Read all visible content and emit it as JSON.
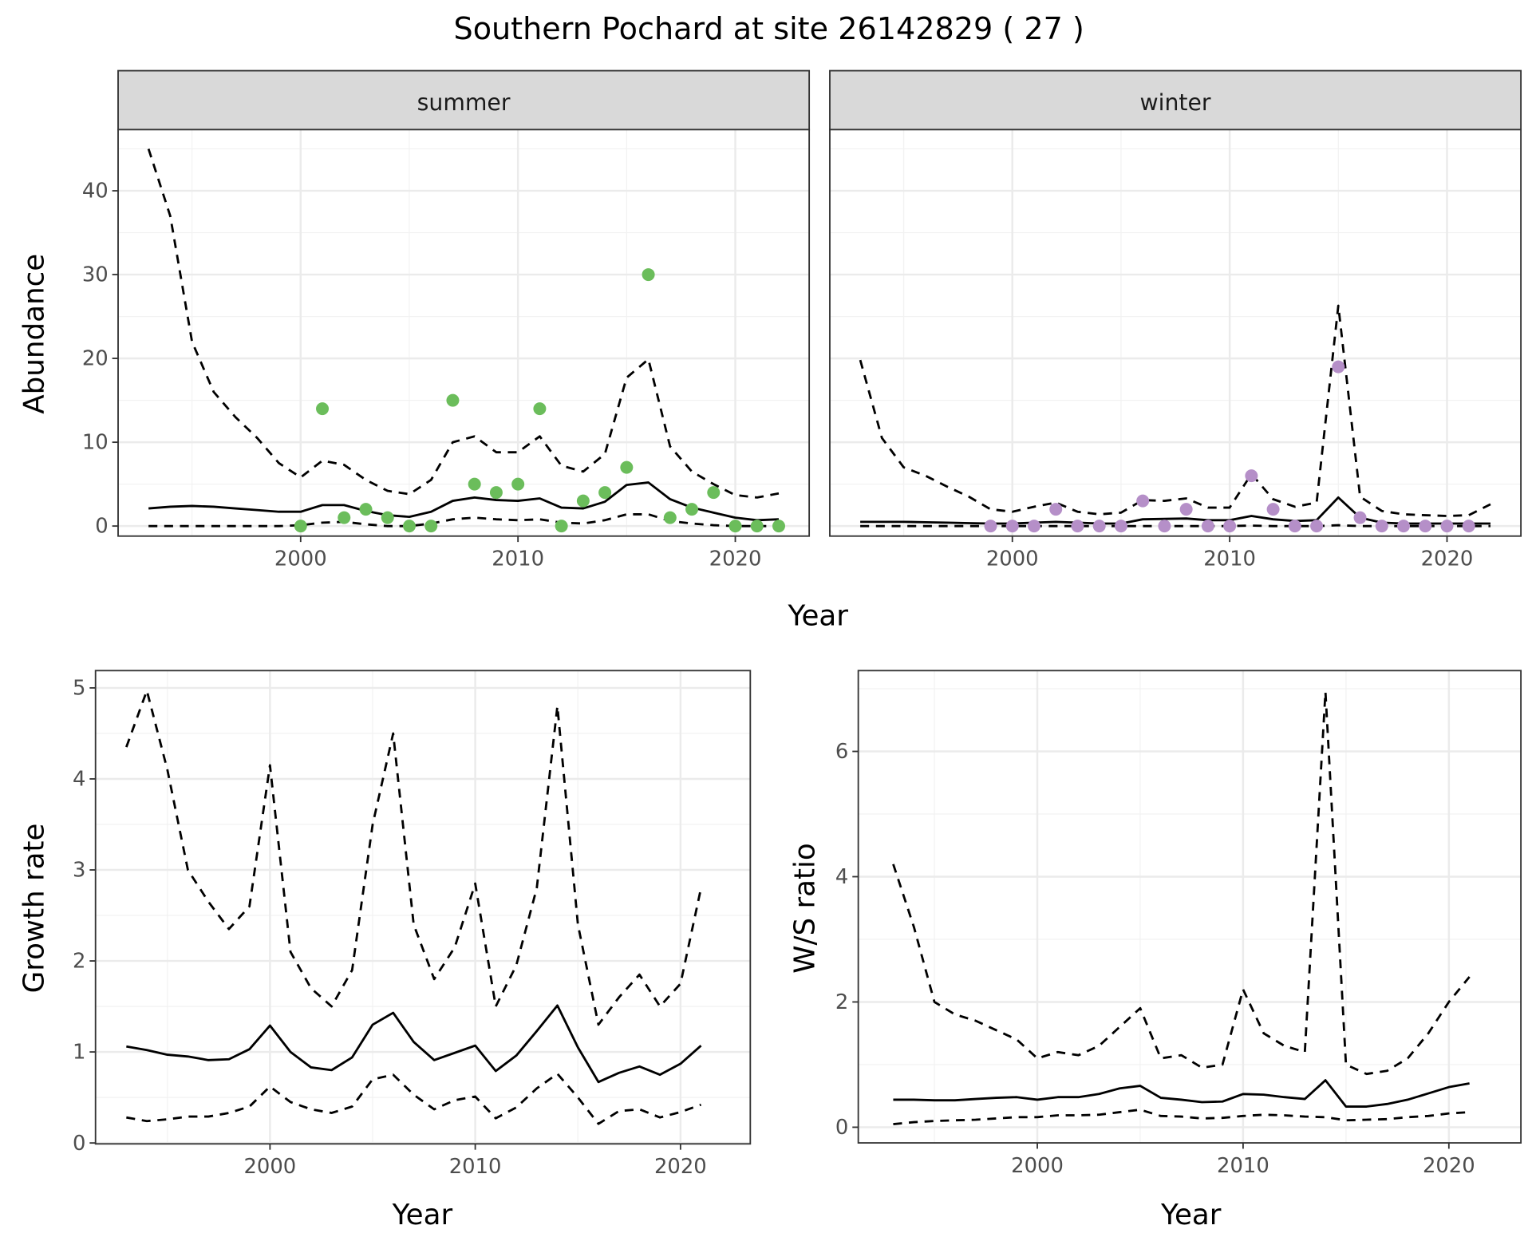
{
  "title": "Southern Pochard at site 26142829 ( 27 )",
  "colors": {
    "summer": "#6bbd5b",
    "winter": "#b58fc8",
    "line": "#000000",
    "strip": "#d9d9d9",
    "grid": "#ebebeb"
  },
  "chart_data": [
    {
      "type": "line",
      "facet": "summer",
      "xlabel": "Year",
      "ylabel": "Abundance",
      "xlim": [
        1991.6,
        2023.4
      ],
      "ylim": [
        -1.2,
        47.3
      ],
      "xticks": [
        2000,
        2010,
        2020
      ],
      "yticks": [
        0,
        10,
        20,
        30,
        40
      ],
      "x": [
        1993,
        1994,
        1995,
        1996,
        1997,
        1998,
        1999,
        2000,
        2001,
        2002,
        2003,
        2004,
        2005,
        2006,
        2007,
        2008,
        2009,
        2010,
        2011,
        2012,
        2013,
        2014,
        2015,
        2016,
        2017,
        2018,
        2019,
        2020,
        2021,
        2022
      ],
      "series": [
        {
          "name": "upper",
          "style": "dashed",
          "values": [
            45,
            37,
            22,
            16,
            13,
            10.5,
            7.5,
            5.8,
            7.8,
            7.3,
            5.5,
            4.2,
            3.8,
            5.5,
            10,
            10.7,
            8.8,
            8.8,
            10.7,
            7.2,
            6.5,
            8.6,
            17.7,
            19.9,
            9.5,
            6.5,
            5,
            3.7,
            3.4,
            3.9
          ]
        },
        {
          "name": "mean",
          "style": "solid",
          "values": [
            2.1,
            2.3,
            2.4,
            2.3,
            2.1,
            1.9,
            1.7,
            1.7,
            2.5,
            2.5,
            1.8,
            1.3,
            1.1,
            1.7,
            3.0,
            3.4,
            3.1,
            3.0,
            3.3,
            2.2,
            2.1,
            2.9,
            4.9,
            5.2,
            3.2,
            2.2,
            1.6,
            1.0,
            0.7,
            0.8
          ]
        },
        {
          "name": "lower",
          "style": "dashed",
          "values": [
            0,
            0,
            0,
            0,
            0,
            0,
            0,
            0.1,
            0.4,
            0.5,
            0.2,
            0,
            0,
            0.3,
            0.8,
            1.0,
            0.8,
            0.7,
            0.8,
            0.4,
            0.3,
            0.7,
            1.4,
            1.4,
            0.6,
            0.3,
            0.1,
            0,
            0,
            0
          ]
        }
      ],
      "points": {
        "x": [
          2000,
          2001,
          2002,
          2003,
          2004,
          2005,
          2006,
          2007,
          2008,
          2009,
          2010,
          2011,
          2012,
          2013,
          2014,
          2015,
          2016,
          2017,
          2018,
          2019,
          2020,
          2021,
          2022
        ],
        "y": [
          0,
          14,
          1,
          2,
          1,
          0,
          0,
          15,
          5,
          4,
          5,
          14,
          0,
          3,
          4,
          7,
          30,
          1,
          2,
          4,
          0,
          0,
          0
        ]
      }
    },
    {
      "type": "line",
      "facet": "winter",
      "xlabel": "Year",
      "ylabel": "Abundance",
      "xlim": [
        1991.6,
        2023.4
      ],
      "ylim": [
        -1.2,
        47.3
      ],
      "xticks": [
        2000,
        2010,
        2020
      ],
      "yticks": [
        0,
        10,
        20,
        30,
        40
      ],
      "x": [
        1993,
        1994,
        1995,
        1996,
        1997,
        1998,
        1999,
        2000,
        2001,
        2002,
        2003,
        2004,
        2005,
        2006,
        2007,
        2008,
        2009,
        2010,
        2011,
        2012,
        2013,
        2014,
        2015,
        2016,
        2017,
        2018,
        2019,
        2020,
        2021,
        2022
      ],
      "series": [
        {
          "name": "upper",
          "style": "dashed",
          "values": [
            19.8,
            10.5,
            7,
            6,
            4.7,
            3.5,
            2,
            1.7,
            2.3,
            2.8,
            1.7,
            1.4,
            1.6,
            3.1,
            3,
            3.3,
            2.2,
            2.2,
            6.2,
            3.2,
            2.3,
            2.8,
            26.3,
            3.5,
            1.8,
            1.4,
            1.3,
            1.2,
            1.3,
            2.6
          ]
        },
        {
          "name": "mean",
          "style": "solid",
          "values": [
            0.5,
            0.5,
            0.5,
            0.45,
            0.4,
            0.35,
            0.3,
            0.3,
            0.4,
            0.5,
            0.4,
            0.3,
            0.3,
            0.8,
            0.85,
            0.9,
            0.7,
            0.7,
            1.2,
            0.8,
            0.6,
            0.7,
            3.4,
            1.0,
            0.4,
            0.3,
            0.3,
            0.3,
            0.3,
            0.3
          ]
        },
        {
          "name": "lower",
          "style": "dashed",
          "values": [
            0,
            0,
            0,
            0,
            0,
            0,
            0,
            0,
            0,
            0,
            0,
            0,
            0,
            0,
            0,
            0,
            0,
            0,
            0.05,
            0,
            0,
            0,
            0.1,
            0,
            0,
            0,
            0,
            0,
            0,
            0
          ]
        }
      ],
      "points": {
        "x": [
          1999,
          2000,
          2001,
          2002,
          2003,
          2004,
          2005,
          2006,
          2007,
          2008,
          2009,
          2010,
          2011,
          2012,
          2013,
          2014,
          2015,
          2016,
          2017,
          2018,
          2019,
          2020,
          2021
        ],
        "y": [
          0,
          0,
          0,
          2,
          0,
          0,
          0,
          3,
          0,
          2,
          0,
          0,
          6,
          2,
          0,
          0,
          19,
          1,
          0,
          0,
          0,
          0,
          0
        ]
      }
    },
    {
      "type": "line",
      "xlabel": "Year",
      "ylabel": "Growth rate",
      "xlim": [
        1991.5,
        2023.4
      ],
      "ylim": [
        -0.01,
        5.19
      ],
      "xticks": [
        2000,
        2010,
        2020
      ],
      "yticks": [
        0,
        1,
        2,
        3,
        4,
        5
      ],
      "x": [
        1993,
        1994,
        1995,
        1996,
        1997,
        1998,
        1999,
        2000,
        2001,
        2002,
        2003,
        2004,
        2005,
        2006,
        2007,
        2008,
        2009,
        2010,
        2011,
        2012,
        2013,
        2014,
        2015,
        2016,
        2017,
        2018,
        2019,
        2020,
        2021
      ],
      "series": [
        {
          "name": "upper",
          "style": "dashed",
          "values": [
            4.35,
            4.97,
            4.1,
            3.0,
            2.65,
            2.35,
            2.6,
            4.15,
            2.1,
            1.7,
            1.5,
            1.9,
            3.5,
            4.5,
            2.4,
            1.8,
            2.15,
            2.85,
            1.5,
            1.95,
            2.8,
            4.8,
            2.4,
            1.3,
            1.6,
            1.85,
            1.5,
            1.75,
            2.8
          ]
        },
        {
          "name": "mean",
          "style": "solid",
          "values": [
            1.06,
            1.02,
            0.97,
            0.95,
            0.91,
            0.92,
            1.03,
            1.29,
            1.0,
            0.83,
            0.8,
            0.94,
            1.3,
            1.43,
            1.11,
            0.91,
            0.99,
            1.07,
            0.79,
            0.96,
            1.23,
            1.51,
            1.05,
            0.67,
            0.77,
            0.84,
            0.75,
            0.87,
            1.07
          ]
        },
        {
          "name": "lower",
          "style": "dashed",
          "values": [
            0.28,
            0.24,
            0.26,
            0.29,
            0.29,
            0.33,
            0.4,
            0.62,
            0.45,
            0.37,
            0.33,
            0.4,
            0.7,
            0.75,
            0.53,
            0.37,
            0.47,
            0.51,
            0.27,
            0.39,
            0.6,
            0.76,
            0.5,
            0.21,
            0.35,
            0.37,
            0.28,
            0.34,
            0.42
          ]
        }
      ]
    },
    {
      "type": "line",
      "xlabel": "Year",
      "ylabel": "W/S ratio",
      "xlim": [
        1991.3,
        2023.5
      ],
      "ylim": [
        -0.25,
        7.29
      ],
      "xticks": [
        2000,
        2010,
        2020
      ],
      "yticks": [
        0,
        2,
        4,
        6
      ],
      "x": [
        1993,
        1994,
        1995,
        1996,
        1997,
        1998,
        1999,
        2000,
        2001,
        2002,
        2003,
        2004,
        2005,
        2006,
        2007,
        2008,
        2009,
        2010,
        2011,
        2012,
        2013,
        2014,
        2015,
        2016,
        2017,
        2018,
        2019,
        2020,
        2021
      ],
      "series": [
        {
          "name": "upper",
          "style": "dashed",
          "values": [
            4.2,
            3.2,
            2.0,
            1.8,
            1.7,
            1.55,
            1.4,
            1.1,
            1.2,
            1.15,
            1.3,
            1.6,
            1.9,
            1.1,
            1.15,
            0.95,
            1.0,
            2.2,
            1.5,
            1.3,
            1.2,
            6.95,
            1.0,
            0.85,
            0.9,
            1.1,
            1.5,
            2.0,
            2.4
          ]
        },
        {
          "name": "mean",
          "style": "solid",
          "values": [
            0.44,
            0.44,
            0.43,
            0.43,
            0.45,
            0.47,
            0.48,
            0.44,
            0.48,
            0.48,
            0.53,
            0.62,
            0.66,
            0.47,
            0.44,
            0.4,
            0.41,
            0.53,
            0.52,
            0.48,
            0.45,
            0.75,
            0.33,
            0.33,
            0.37,
            0.44,
            0.54,
            0.64,
            0.7
          ]
        },
        {
          "name": "lower",
          "style": "dashed",
          "values": [
            0.05,
            0.08,
            0.1,
            0.11,
            0.12,
            0.14,
            0.16,
            0.16,
            0.19,
            0.19,
            0.2,
            0.24,
            0.28,
            0.18,
            0.17,
            0.14,
            0.15,
            0.18,
            0.2,
            0.19,
            0.17,
            0.16,
            0.11,
            0.12,
            0.13,
            0.16,
            0.18,
            0.22,
            0.24
          ]
        }
      ]
    }
  ]
}
